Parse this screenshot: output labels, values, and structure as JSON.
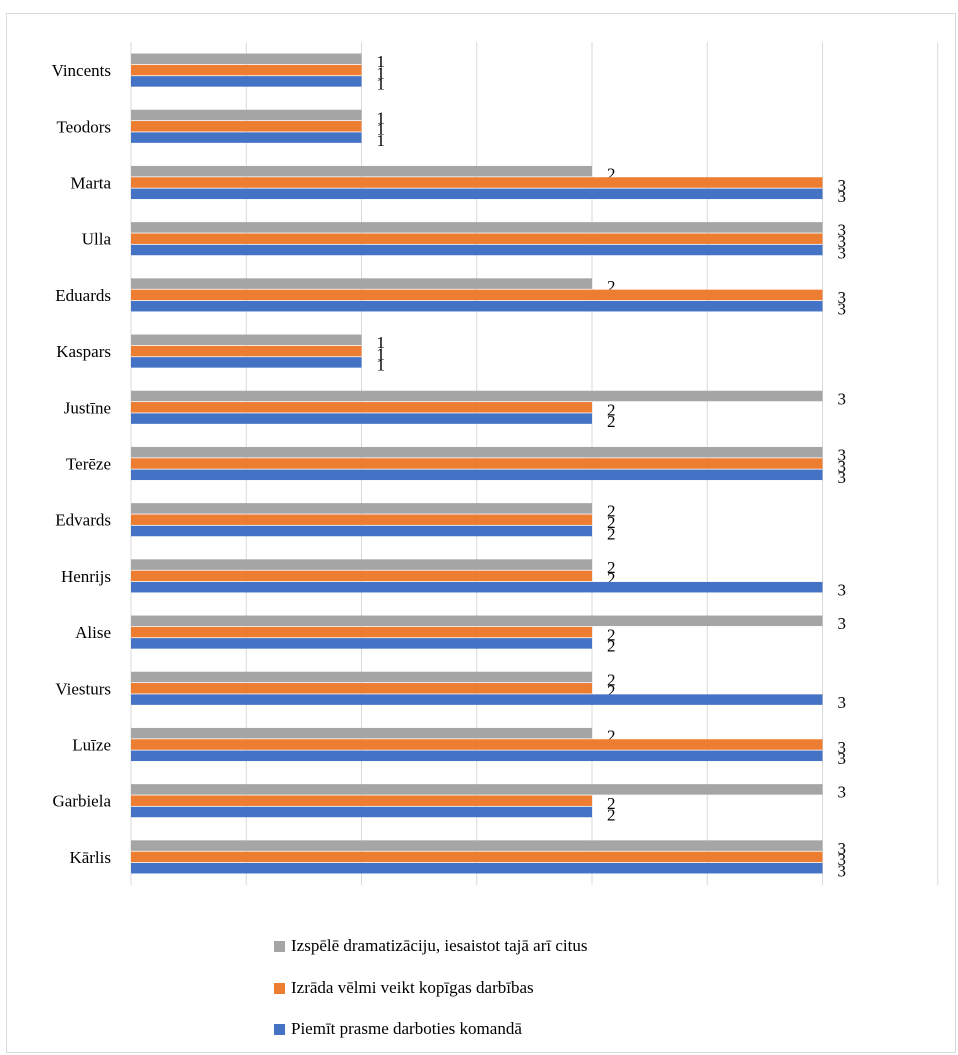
{
  "chart_data": {
    "type": "bar",
    "orientation": "horizontal",
    "categories": [
      "Kārlis",
      "Garbiela",
      "Luīze",
      "Viesturs",
      "Alise",
      "Henrijs",
      "Edvards",
      "Terēze",
      "Justīne",
      "Kaspars",
      "Eduards",
      "Ulla",
      "Marta",
      "Teodors",
      "Vincents"
    ],
    "series": [
      {
        "name": "Piemīt prasme darboties komandā",
        "color": "#4472c4",
        "values": [
          3,
          2,
          3,
          3,
          2,
          3,
          2,
          3,
          2,
          1,
          3,
          3,
          3,
          1,
          1
        ]
      },
      {
        "name": "Izrāda vēlmi veikt kopīgas darbības",
        "color": "#ed7d31",
        "values": [
          3,
          2,
          3,
          2,
          2,
          2,
          2,
          3,
          2,
          1,
          3,
          3,
          3,
          1,
          1
        ]
      },
      {
        "name": "Izspēlē dramatizāciju, iesaistot tajā arī citus",
        "color": "#a5a5a5",
        "values": [
          3,
          3,
          2,
          2,
          3,
          2,
          2,
          3,
          3,
          1,
          2,
          3,
          2,
          1,
          1
        ]
      }
    ],
    "xlim": [
      0,
      3.5
    ],
    "grid": true,
    "data_labels": true,
    "legend_position": "bottom"
  }
}
